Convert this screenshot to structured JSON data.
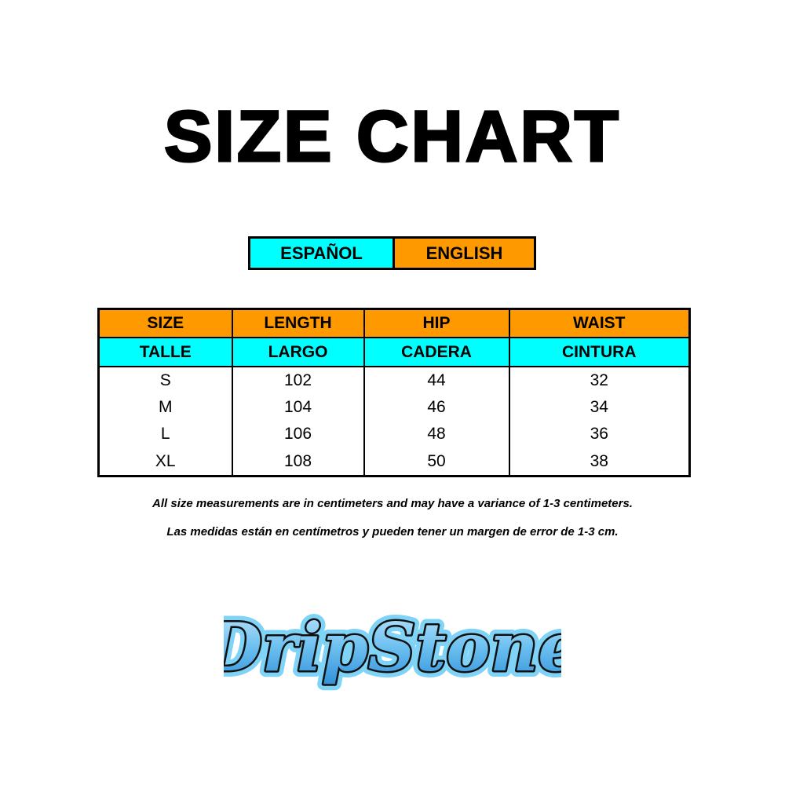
{
  "title": "SIZE CHART",
  "legend": {
    "spanish": "ESPAÑOL",
    "english": "ENGLISH"
  },
  "colors": {
    "spanish": "#00ffff",
    "english": "#ff9900"
  },
  "table": {
    "header_en": [
      "SIZE",
      "LENGTH",
      "HIP",
      "WAIST"
    ],
    "header_es": [
      "TALLE",
      "LARGO",
      "CADERA",
      "CINTURA"
    ],
    "rows": [
      [
        "S",
        "102",
        "44",
        "32"
      ],
      [
        "M",
        "104",
        "46",
        "34"
      ],
      [
        "L",
        "106",
        "48",
        "36"
      ],
      [
        "XL",
        "108",
        "50",
        "38"
      ]
    ]
  },
  "notes": {
    "en": "All size measurements are in centimeters and may have a variance of 1-3 centimeters.",
    "es": "Las medidas están en centímetros y pueden tener un margen de error de 1-3 cm."
  },
  "logo": {
    "text": "DripStone"
  }
}
